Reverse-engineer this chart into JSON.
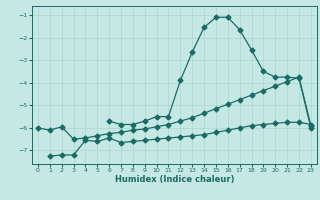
{
  "xlabel": "Humidex (Indice chaleur)",
  "bg_color": "#c5e8e5",
  "grid_color": "#aed4d0",
  "line_color": "#1a6b65",
  "xlim": [
    -0.5,
    23.5
  ],
  "ylim": [
    -7.6,
    -0.6
  ],
  "yticks": [
    -7,
    -6,
    -5,
    -4,
    -3,
    -2,
    -1
  ],
  "xticks": [
    0,
    1,
    2,
    3,
    4,
    5,
    6,
    7,
    8,
    9,
    10,
    11,
    12,
    13,
    14,
    15,
    16,
    17,
    18,
    19,
    20,
    21,
    22,
    23
  ],
  "line1_x": [
    6,
    7,
    8,
    9,
    10,
    11,
    12,
    13,
    14,
    15,
    16,
    17,
    18,
    19,
    20,
    21,
    22,
    23
  ],
  "line1_y": [
    -5.7,
    -5.85,
    -5.85,
    -5.7,
    -5.5,
    -5.5,
    -3.9,
    -2.65,
    -1.55,
    -1.1,
    -1.1,
    -1.65,
    -2.55,
    -3.5,
    -3.75,
    -3.75,
    -3.8,
    -6.0
  ],
  "line2_x": [
    0,
    1,
    2,
    3,
    4,
    5,
    6,
    7,
    8,
    9,
    10,
    11,
    12,
    13,
    14,
    15,
    16,
    17,
    18,
    19,
    20,
    21,
    22,
    23
  ],
  "line2_y": [
    -6.0,
    -6.1,
    -5.95,
    -6.5,
    -6.45,
    -6.35,
    -6.25,
    -6.2,
    -6.1,
    -6.05,
    -5.95,
    -5.85,
    -5.7,
    -5.55,
    -5.35,
    -5.15,
    -4.95,
    -4.75,
    -4.55,
    -4.35,
    -4.15,
    -3.95,
    -3.75,
    -5.9
  ],
  "line3_x": [
    1,
    2,
    3,
    4,
    5,
    6,
    7,
    8,
    9,
    10,
    11,
    12,
    13,
    14,
    15,
    16,
    17,
    18,
    19,
    20,
    21,
    22,
    23
  ],
  "line3_y": [
    -7.25,
    -7.2,
    -7.2,
    -6.55,
    -6.6,
    -6.45,
    -6.65,
    -6.6,
    -6.55,
    -6.5,
    -6.45,
    -6.4,
    -6.35,
    -6.3,
    -6.2,
    -6.1,
    -6.0,
    -5.9,
    -5.85,
    -5.8,
    -5.75,
    -5.75,
    -5.85
  ]
}
